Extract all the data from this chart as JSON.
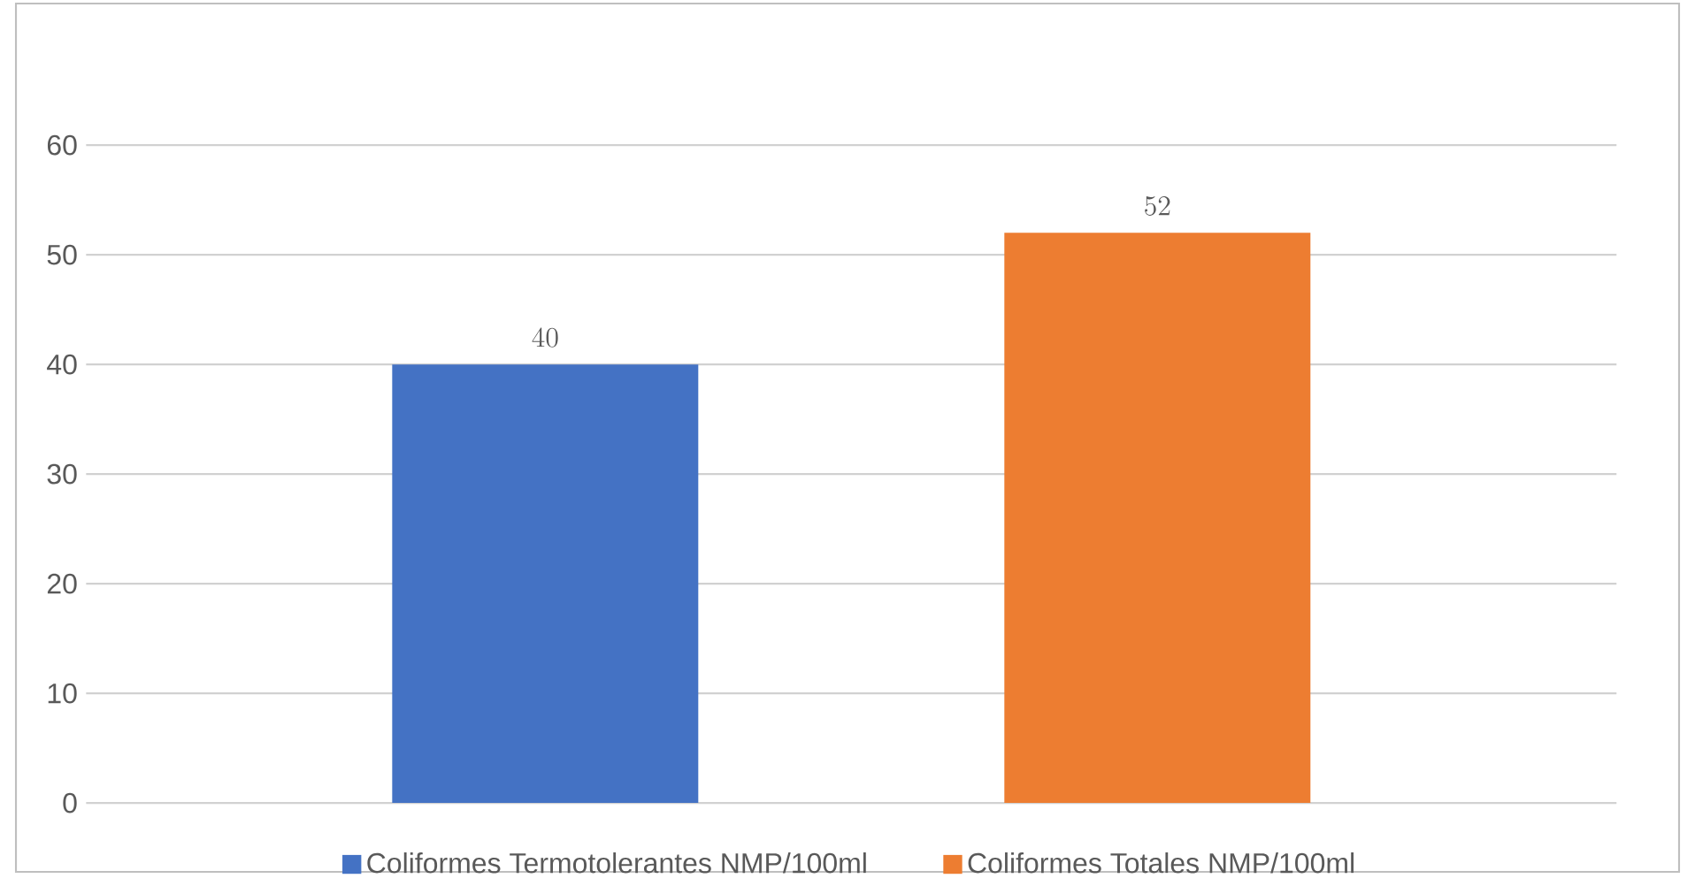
{
  "chart_data": {
    "type": "bar",
    "categories": [
      null
    ],
    "series": [
      {
        "name": "Coliformes Termotolerantes  NMP/100ml",
        "color": "#4472c4",
        "values": [
          40
        ]
      },
      {
        "name": "Coliformes Totales NMP/100ml",
        "color": "#ed7d31",
        "values": [
          52
        ]
      }
    ],
    "ylim": [
      0,
      60
    ],
    "yticks": [
      0,
      10,
      20,
      30,
      40,
      50,
      60
    ],
    "grid": "y",
    "legend": "bottom",
    "data_labels": true
  }
}
